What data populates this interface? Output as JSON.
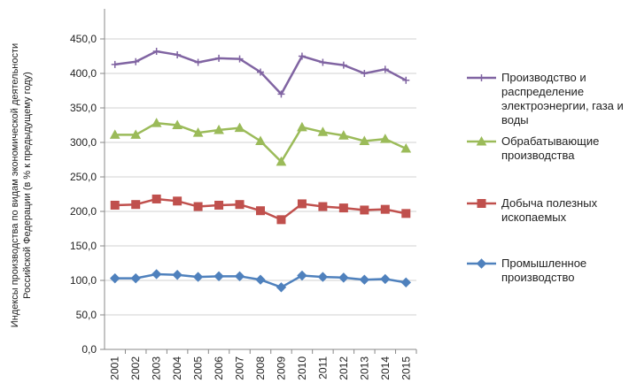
{
  "chart_data": {
    "type": "line",
    "y_label": [
      "Индексы производства по видам экономической деятельности",
      "Российской Федерации (в % к предыдущему году)"
    ],
    "categories": [
      "2001",
      "2002",
      "2003",
      "2004",
      "2005",
      "2006",
      "2007",
      "2008",
      "2009",
      "2010",
      "2011",
      "2012",
      "2013",
      "2014",
      "2015"
    ],
    "series": [
      {
        "name": "Производство и распределение электроэнергии, газа и воды",
        "color": "#8064a2",
        "marker": "plus",
        "values": [
          413,
          417,
          432,
          427,
          416,
          422,
          421,
          402,
          370,
          425,
          416,
          412,
          400,
          406,
          390
        ]
      },
      {
        "name": "Обрабатывающие производства",
        "color": "#9bbb59",
        "marker": "triangle",
        "values": [
          311,
          311,
          328,
          325,
          314,
          318,
          321,
          302,
          272,
          322,
          315,
          310,
          302,
          305,
          291
        ]
      },
      {
        "name": "Добыча полезных ископаемых",
        "color": "#c0504d",
        "marker": "square",
        "values": [
          209,
          210,
          218,
          215,
          207,
          209,
          210,
          201,
          188,
          211,
          207,
          205,
          202,
          203,
          197
        ]
      },
      {
        "name": "Промышленное производство",
        "color": "#4f81bd",
        "marker": "diamond",
        "values": [
          103,
          103,
          109,
          108,
          105,
          106,
          106,
          101,
          90,
          107,
          105,
          104,
          101,
          102,
          97
        ]
      }
    ],
    "ylim": [
      0,
      450
    ],
    "yticks": [
      {
        "value": 0,
        "label": "0,0"
      },
      {
        "value": 50,
        "label": "50,0"
      },
      {
        "value": 100,
        "label": "100,0"
      },
      {
        "value": 150,
        "label": "150,0"
      },
      {
        "value": 200,
        "label": "200,0"
      },
      {
        "value": 250,
        "label": "250,0"
      },
      {
        "value": 300,
        "label": "300,0"
      },
      {
        "value": 350,
        "label": "350,0"
      },
      {
        "value": 400,
        "label": "400,0"
      },
      {
        "value": 450,
        "label": "450,0"
      }
    ],
    "grid": true
  }
}
